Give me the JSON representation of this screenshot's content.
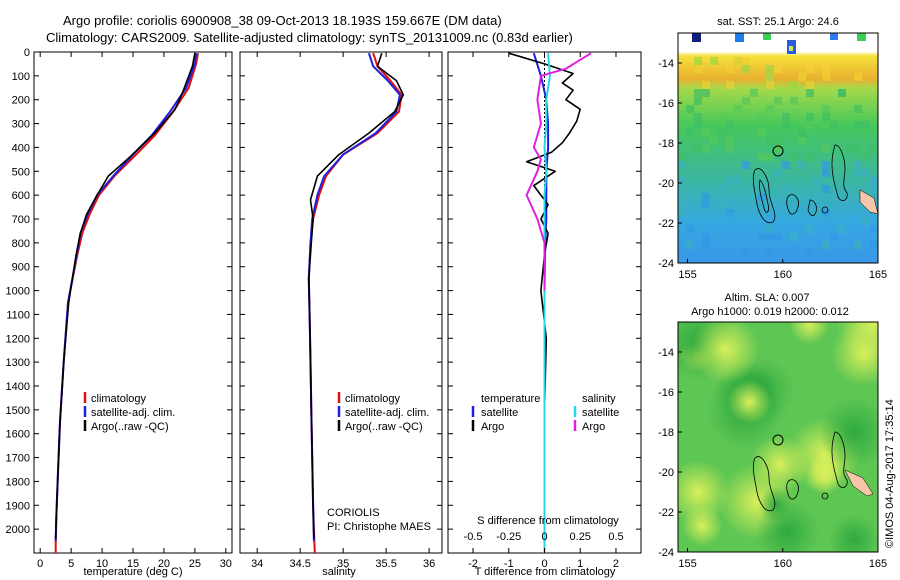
{
  "header": {
    "title_line1": "Argo profile: coriolis 6900908_38 09-Oct-2013 18.193S 159.667E (DM data)",
    "title_line2": "Climatology: CARS2009. Satellite-adjusted climatology: synTS_20131009.nc (0.83d earlier)"
  },
  "stamp": "©IMOS 04-Aug-2017 17:35:14",
  "colors": {
    "climatology": "#e01010",
    "satellite": "#1f1fe0",
    "argo": "#000000",
    "sat_salinity": "#22d8e8",
    "argo_salinity": "#e020e0"
  },
  "chart_data": [
    {
      "type": "line",
      "panel": "temperature",
      "xlabel": "temperature (deg C)",
      "ylabel": "",
      "xlim": [
        -1,
        31
      ],
      "ylim": [
        2100,
        0
      ],
      "xticks": [
        0,
        5,
        10,
        15,
        20,
        25,
        30
      ],
      "yticks": [
        0,
        100,
        200,
        300,
        400,
        500,
        600,
        700,
        800,
        900,
        1000,
        1100,
        1200,
        1300,
        1400,
        1500,
        1600,
        1700,
        1800,
        1900,
        2000
      ],
      "legend": [
        "climatology",
        "satellite-adj. clim.",
        "Argo(..raw -QC)"
      ],
      "series": [
        {
          "name": "climatology",
          "color": "#e01010",
          "x": [
            25.5,
            25.2,
            24.0,
            21.5,
            18.5,
            15.5,
            12.0,
            9.5,
            8.0,
            6.8,
            6.0,
            4.5,
            3.8,
            3.2,
            2.9,
            2.6,
            2.5,
            2.5
          ],
          "y": [
            5,
            50,
            150,
            250,
            350,
            430,
            520,
            600,
            680,
            760,
            850,
            1050,
            1300,
            1550,
            1750,
            1950,
            2050,
            2100
          ]
        },
        {
          "name": "satellite-adj. clim.",
          "color": "#1f1fe0",
          "x": [
            25.2,
            25.0,
            23.6,
            21.0,
            18.0,
            15.0,
            11.8,
            9.2,
            7.7,
            6.5,
            5.9,
            4.5,
            3.8,
            3.2,
            2.9,
            2.6,
            2.5
          ],
          "y": [
            5,
            50,
            150,
            250,
            350,
            430,
            520,
            600,
            680,
            760,
            850,
            1050,
            1300,
            1550,
            1750,
            1950,
            2050
          ]
        },
        {
          "name": "Argo(..raw -QC)",
          "color": "#000000",
          "x": [
            25.0,
            24.6,
            23.0,
            21.8,
            18.5,
            14.5,
            11.0,
            9.2,
            7.5,
            6.5,
            5.8,
            4.6,
            3.8,
            3.2,
            2.9,
            2.6,
            2.5
          ],
          "y": [
            5,
            60,
            170,
            240,
            340,
            440,
            520,
            600,
            680,
            760,
            850,
            1050,
            1300,
            1550,
            1750,
            1950,
            2040
          ]
        }
      ]
    },
    {
      "type": "line",
      "panel": "salinity",
      "xlabel": "salinity",
      "ylabel": "",
      "xlim": [
        33.8,
        36.15
      ],
      "ylim": [
        2100,
        0
      ],
      "xticks": [
        34,
        34.5,
        35,
        35.5,
        36
      ],
      "legend": [
        "climatology",
        "satellite-adj. clim.",
        "Argo(..raw -QC)"
      ],
      "annotation": [
        "CORIOLIS",
        "PI: Christophe MAES"
      ],
      "series": [
        {
          "name": "climatology",
          "color": "#e01010",
          "x": [
            35.35,
            35.4,
            35.55,
            35.68,
            35.65,
            35.4,
            35.0,
            34.8,
            34.72,
            34.65,
            34.62,
            34.6,
            34.61,
            34.62,
            34.63,
            34.64,
            34.65,
            34.66,
            34.67
          ],
          "y": [
            5,
            60,
            120,
            180,
            250,
            340,
            430,
            520,
            600,
            700,
            800,
            950,
            1100,
            1300,
            1500,
            1700,
            1900,
            2000,
            2100
          ]
        },
        {
          "name": "satellite-adj. clim.",
          "color": "#1f1fe0",
          "x": [
            35.3,
            35.35,
            35.52,
            35.66,
            35.62,
            35.38,
            35.0,
            34.78,
            34.7,
            34.64,
            34.62,
            34.6,
            34.61,
            34.62,
            34.63,
            34.64,
            34.65,
            34.66
          ],
          "y": [
            5,
            60,
            120,
            180,
            250,
            340,
            430,
            520,
            600,
            700,
            800,
            950,
            1100,
            1300,
            1500,
            1700,
            1900,
            2050
          ]
        },
        {
          "name": "Argo(..raw -QC)",
          "color": "#000000",
          "x": [
            35.45,
            35.4,
            35.62,
            35.7,
            35.6,
            35.3,
            34.95,
            34.7,
            34.62,
            34.65,
            34.63,
            34.6,
            34.61,
            34.62,
            34.63,
            34.64,
            34.65,
            34.66
          ],
          "y": [
            5,
            60,
            120,
            180,
            250,
            340,
            430,
            520,
            620,
            700,
            800,
            950,
            1100,
            1300,
            1500,
            1700,
            1900,
            2040
          ]
        }
      ]
    },
    {
      "type": "line",
      "panel": "difference",
      "xlabel": "T difference from climatology",
      "x2label": "S difference from climatology",
      "xlim": [
        -2.7,
        2.7
      ],
      "ylim": [
        2100,
        0
      ],
      "xticks": [
        -2,
        -1,
        0,
        1,
        2
      ],
      "x2ticks": [
        "-0.5",
        "-0.25",
        "0",
        "0.25",
        "0.5"
      ],
      "legend_temperature_title": "temperature",
      "legend_salinity_title": "salinity",
      "legend_temperature": [
        "satellite",
        "Argo"
      ],
      "legend_salinity": [
        "satellite",
        "Argo"
      ],
      "series": [
        {
          "name": "satellite",
          "group": "temperature",
          "color": "#1f1fe0",
          "x": [
            -0.3,
            -0.1,
            0.05,
            0.1,
            0.1,
            0.05,
            0.05,
            0.05,
            0.02,
            0.0,
            0.0,
            0.0,
            0.0
          ],
          "y": [
            5,
            100,
            200,
            300,
            400,
            500,
            600,
            700,
            800,
            1000,
            1300,
            1700,
            2100
          ]
        },
        {
          "name": "Argo",
          "group": "temperature",
          "color": "#000000",
          "x": [
            -1.0,
            0.0,
            0.8,
            0.5,
            0.8,
            0.6,
            1.0,
            0.9,
            0.7,
            0.5,
            0.2,
            -0.5,
            0.3,
            -0.3,
            -0.1,
            0.1,
            -0.1,
            0.1,
            0.0,
            -0.1,
            0.05,
            0.0,
            0.0
          ],
          "y": [
            5,
            50,
            90,
            130,
            160,
            200,
            240,
            290,
            340,
            380,
            420,
            460,
            500,
            560,
            600,
            640,
            700,
            760,
            850,
            1000,
            1200,
            1500,
            2050
          ]
        },
        {
          "name": "satellite",
          "group": "salinity",
          "color": "#22d8e8",
          "x": [
            0.1,
            0.15,
            0.05,
            0.05,
            0.0,
            0.05,
            0.0,
            0.0,
            0.0,
            0.0
          ],
          "y": [
            5,
            100,
            200,
            300,
            400,
            500,
            600,
            800,
            1200,
            2100
          ]
        },
        {
          "name": "Argo",
          "group": "salinity",
          "color": "#e020e0",
          "x": [
            1.3,
            0.6,
            -0.1,
            -0.2,
            -0.1,
            -0.3,
            -0.1,
            -0.2,
            -0.5,
            -0.2,
            0.0,
            0.0
          ],
          "y": [
            5,
            70,
            100,
            200,
            300,
            400,
            450,
            500,
            600,
            700,
            800,
            1000
          ]
        }
      ]
    },
    {
      "type": "heatmap",
      "panel": "sst_map",
      "title": "sat. SST: 25.1  Argo: 24.6",
      "xlim": [
        154.5,
        165
      ],
      "ylim": [
        -24,
        -12.5
      ],
      "xticks": [
        155,
        160,
        165
      ],
      "yticks": [
        -14,
        -16,
        -18,
        -20,
        -22,
        -24
      ],
      "marker": {
        "lon": 159.667,
        "lat": -18.193
      }
    },
    {
      "type": "heatmap",
      "panel": "sla_map",
      "title": "Altim. SLA: 0.007",
      "subtitle": "Argo h1000: 0.019 h2000: 0.012",
      "xlim": [
        154.5,
        165
      ],
      "ylim": [
        -24,
        -12.5
      ],
      "xticks": [
        155,
        160,
        165
      ],
      "yticks": [
        -14,
        -16,
        -18,
        -20,
        -22,
        -24
      ],
      "marker": {
        "lon": 159.667,
        "lat": -18.193
      }
    }
  ]
}
